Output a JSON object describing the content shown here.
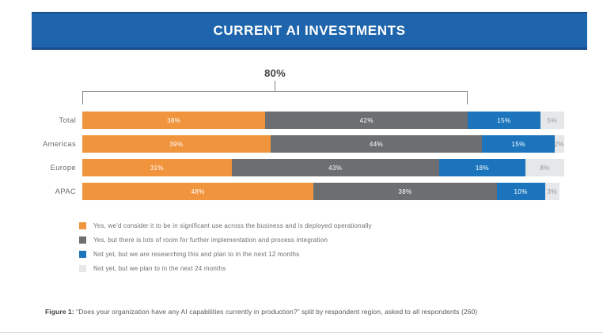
{
  "header": {
    "title": "CURRENT AI INVESTMENTS"
  },
  "chart_data": {
    "type": "bar",
    "orientation": "horizontal",
    "stacked": true,
    "categories": [
      "Total",
      "Americas",
      "Europe",
      "APAC"
    ],
    "series": [
      {
        "name": "Yes, we'd consider it to be in significant use across the business and is deployed operationally",
        "color": "#f0943d",
        "label_color": "#ffffff",
        "values": [
          38,
          39,
          31,
          48
        ]
      },
      {
        "name": "Yes, but there is lots of room for further implementation and process integration",
        "color": "#6d6e71",
        "label_color": "#ffffff",
        "values": [
          42,
          44,
          43,
          38
        ]
      },
      {
        "name": "Not yet, but we are researching this and plan to in the next 12 months",
        "color": "#1c75bc",
        "label_color": "#ffffff",
        "values": [
          15,
          15,
          18,
          10
        ]
      },
      {
        "name": "Not yet, but we plan to in the next 24 months",
        "color": "#e6e7e8",
        "label_color": "#939598",
        "values": [
          5,
          2,
          8,
          3
        ]
      }
    ],
    "value_suffix": "%",
    "annotation": {
      "label": "80%",
      "span_percent": 80
    },
    "xlim": [
      0,
      100
    ],
    "grid": false,
    "legend_position": "bottom-left"
  },
  "caption": {
    "prefix": "Figure 1:",
    "text": " “Does your organization have any AI capabilities currently in production?” split by respondent region, asked to all respondents (260)"
  }
}
